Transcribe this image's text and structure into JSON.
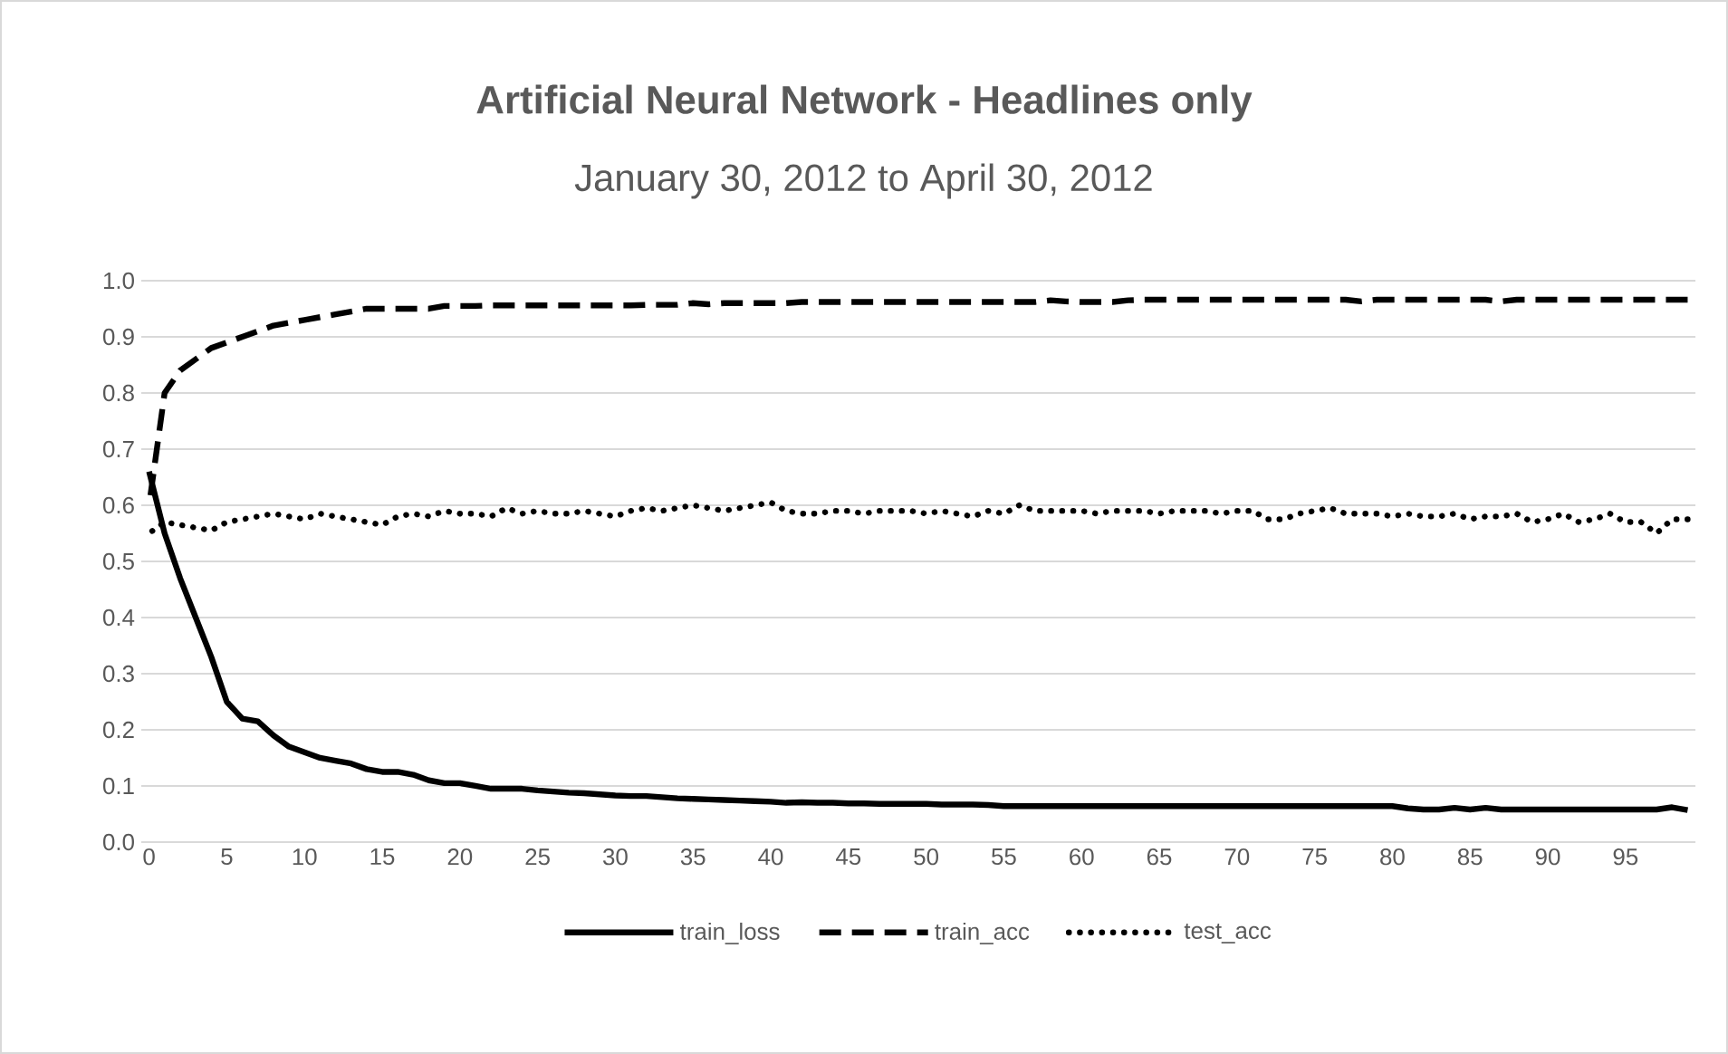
{
  "chart_data": {
    "type": "line",
    "title": "**Artificial Neural Network - Headlines only**",
    "subtitle": "January 30, 2012 to April 30, 2012",
    "categories": [
      "0",
      null,
      null,
      null,
      null,
      "5",
      null,
      null,
      null,
      null,
      "10",
      null,
      null,
      null,
      null,
      "15",
      null,
      null,
      null,
      null,
      "20",
      null,
      null,
      null,
      null,
      "25",
      null,
      null,
      null,
      null,
      "30",
      null,
      null,
      null,
      null,
      "35",
      null,
      null,
      null,
      null,
      "40",
      null,
      null,
      null,
      null,
      "45",
      null,
      null,
      null,
      null,
      "50",
      null,
      null,
      null,
      null,
      "55",
      null,
      null,
      null,
      null,
      "60",
      null,
      null,
      null,
      null,
      "65",
      null,
      null,
      null,
      null,
      "70",
      null,
      null,
      null,
      null,
      "75",
      null,
      null,
      null,
      null,
      "80",
      null,
      null,
      null,
      null,
      "85",
      null,
      null,
      null,
      null,
      "90",
      null,
      null,
      null,
      null,
      "95",
      null,
      null,
      null,
      null
    ],
    "series": [
      {
        "name": "train_loss",
        "color": "#000000",
        "line_style": "solid",
        "values": [
          0.66,
          0.55,
          0.47,
          0.4,
          0.33,
          0.25,
          0.22,
          0.215,
          0.19,
          0.17,
          0.16,
          0.15,
          0.145,
          0.14,
          0.13,
          0.125,
          0.125,
          0.12,
          0.11,
          0.105,
          0.105,
          0.1,
          0.095,
          0.095,
          0.095,
          0.092,
          0.09,
          0.088,
          0.087,
          0.085,
          0.083,
          0.082,
          0.082,
          0.08,
          0.078,
          0.077,
          0.076,
          0.075,
          0.074,
          0.073,
          0.072,
          0.07,
          0.071,
          0.07,
          0.07,
          0.069,
          0.069,
          0.068,
          0.068,
          0.068,
          0.068,
          0.067,
          0.067,
          0.067,
          0.066,
          0.064,
          0.064,
          0.064,
          0.064,
          0.064,
          0.064,
          0.064,
          0.064,
          0.064,
          0.064,
          0.064,
          0.064,
          0.064,
          0.064,
          0.064,
          0.064,
          0.064,
          0.064,
          0.064,
          0.064,
          0.064,
          0.064,
          0.064,
          0.064,
          0.064,
          0.064,
          0.06,
          0.058,
          0.058,
          0.061,
          0.058,
          0.061,
          0.058,
          0.058,
          0.058,
          0.058,
          0.058,
          0.058,
          0.058,
          0.058,
          0.058,
          0.058,
          0.058,
          0.062,
          0.057
        ]
      },
      {
        "name": "train_acc",
        "color": "#000000",
        "line_style": "dashed",
        "values": [
          0.6,
          0.8,
          0.84,
          0.86,
          0.88,
          0.89,
          0.9,
          0.91,
          0.92,
          0.925,
          0.93,
          0.935,
          0.94,
          0.945,
          0.95,
          0.95,
          0.95,
          0.95,
          0.95,
          0.955,
          0.955,
          0.955,
          0.956,
          0.956,
          0.956,
          0.956,
          0.956,
          0.956,
          0.956,
          0.956,
          0.956,
          0.956,
          0.957,
          0.957,
          0.957,
          0.96,
          0.958,
          0.96,
          0.96,
          0.96,
          0.96,
          0.96,
          0.962,
          0.962,
          0.962,
          0.962,
          0.962,
          0.962,
          0.962,
          0.962,
          0.962,
          0.962,
          0.962,
          0.962,
          0.962,
          0.962,
          0.962,
          0.962,
          0.965,
          0.963,
          0.962,
          0.962,
          0.962,
          0.965,
          0.966,
          0.966,
          0.966,
          0.966,
          0.966,
          0.966,
          0.966,
          0.966,
          0.966,
          0.966,
          0.966,
          0.966,
          0.966,
          0.966,
          0.963,
          0.966,
          0.966,
          0.966,
          0.966,
          0.966,
          0.966,
          0.966,
          0.966,
          0.963,
          0.966,
          0.966,
          0.966,
          0.966,
          0.966,
          0.966,
          0.966,
          0.966,
          0.966,
          0.966,
          0.966,
          0.966
        ]
      },
      {
        "name": "test_acc",
        "color": "#000000",
        "line_style": "dotted",
        "values": [
          0.55,
          0.57,
          0.565,
          0.56,
          0.555,
          0.57,
          0.575,
          0.58,
          0.585,
          0.58,
          0.575,
          0.585,
          0.58,
          0.575,
          0.57,
          0.565,
          0.58,
          0.585,
          0.58,
          0.59,
          0.585,
          0.585,
          0.58,
          0.595,
          0.585,
          0.59,
          0.585,
          0.585,
          0.59,
          0.585,
          0.58,
          0.59,
          0.595,
          0.59,
          0.595,
          0.6,
          0.595,
          0.59,
          0.595,
          0.6,
          0.605,
          0.59,
          0.585,
          0.585,
          0.59,
          0.59,
          0.585,
          0.59,
          0.59,
          0.59,
          0.585,
          0.59,
          0.585,
          0.58,
          0.59,
          0.585,
          0.6,
          0.59,
          0.59,
          0.59,
          0.59,
          0.585,
          0.59,
          0.59,
          0.59,
          0.585,
          0.59,
          0.59,
          0.59,
          0.585,
          0.59,
          0.59,
          0.575,
          0.575,
          0.585,
          0.59,
          0.595,
          0.585,
          0.585,
          0.585,
          0.58,
          0.585,
          0.58,
          0.58,
          0.585,
          0.575,
          0.58,
          0.58,
          0.585,
          0.57,
          0.575,
          0.585,
          0.57,
          0.575,
          0.585,
          0.57,
          0.57,
          0.55,
          0.575,
          0.575
        ]
      }
    ],
    "ylim": [
      0,
      1
    ],
    "yticks": [
      {
        "value": 0,
        "label": "0.0"
      },
      {
        "value": 0.1,
        "label": "0.1"
      },
      {
        "value": 0.2,
        "label": "0.2"
      },
      {
        "value": 0.3,
        "label": "0.3"
      },
      {
        "value": 0.4,
        "label": "0.4"
      },
      {
        "value": 0.5,
        "label": "0.5"
      },
      {
        "value": 0.6,
        "label": "0.6"
      },
      {
        "value": 0.7,
        "label": "0.7"
      },
      {
        "value": 0.8,
        "label": "0.8"
      },
      {
        "value": 0.9,
        "label": "0.9"
      },
      {
        "value": 1,
        "label": "1.0"
      }
    ],
    "grid": "y",
    "legend": "bottom"
  }
}
